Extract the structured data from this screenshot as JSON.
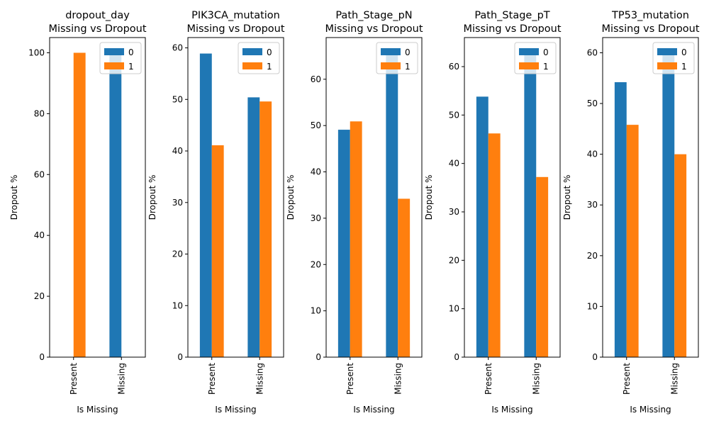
{
  "figure": {
    "background": "#ffffff",
    "colors": {
      "0": "#1f77b4",
      "1": "#ff7f0e"
    }
  },
  "chart_data": [
    {
      "type": "bar",
      "title": "dropout_day\nMissing vs Dropout",
      "xlabel": "Is Missing",
      "ylabel": "Dropout %",
      "categories": [
        "Present",
        "Missing"
      ],
      "ylim": [
        0,
        105
      ],
      "yticks": [
        0,
        20,
        40,
        60,
        80,
        100
      ],
      "series": [
        {
          "name": "0",
          "values": [
            0,
            100
          ]
        },
        {
          "name": "1",
          "values": [
            100,
            0
          ]
        }
      ],
      "legend": "top-right"
    },
    {
      "type": "bar",
      "title": "PIK3CA_mutation\nMissing vs Dropout",
      "xlabel": "Is Missing",
      "ylabel": "Dropout %",
      "categories": [
        "Present",
        "Missing"
      ],
      "ylim": [
        0,
        62
      ],
      "yticks": [
        0,
        10,
        20,
        30,
        40,
        50,
        60
      ],
      "series": [
        {
          "name": "0",
          "values": [
            58.9,
            50.4
          ]
        },
        {
          "name": "1",
          "values": [
            41.1,
            49.6
          ]
        }
      ],
      "legend": "top-right"
    },
    {
      "type": "bar",
      "title": "Path_Stage_pN\nMissing vs Dropout",
      "xlabel": "Is Missing",
      "ylabel": "Dropout %",
      "categories": [
        "Present",
        "Missing"
      ],
      "ylim": [
        0,
        69
      ],
      "yticks": [
        0,
        10,
        20,
        30,
        40,
        50,
        60
      ],
      "series": [
        {
          "name": "0",
          "values": [
            49.1,
            65.8
          ]
        },
        {
          "name": "1",
          "values": [
            50.9,
            34.2
          ]
        }
      ],
      "legend": "top-right"
    },
    {
      "type": "bar",
      "title": "Path_Stage_pT\nMissing vs Dropout",
      "xlabel": "Is Missing",
      "ylabel": "Dropout %",
      "categories": [
        "Present",
        "Missing"
      ],
      "ylim": [
        0,
        66
      ],
      "yticks": [
        0,
        10,
        20,
        30,
        40,
        50,
        60
      ],
      "series": [
        {
          "name": "0",
          "values": [
            53.8,
            62.8
          ]
        },
        {
          "name": "1",
          "values": [
            46.2,
            37.2
          ]
        }
      ],
      "legend": "top-right"
    },
    {
      "type": "bar",
      "title": "TP53_mutation\nMissing vs Dropout",
      "xlabel": "Is Missing",
      "ylabel": "Dropout %",
      "categories": [
        "Present",
        "Missing"
      ],
      "ylim": [
        0,
        63
      ],
      "yticks": [
        0,
        10,
        20,
        30,
        40,
        50,
        60
      ],
      "series": [
        {
          "name": "0",
          "values": [
            54.2,
            60.0
          ]
        },
        {
          "name": "1",
          "values": [
            45.8,
            40.0
          ]
        }
      ],
      "legend": "top-right"
    }
  ]
}
